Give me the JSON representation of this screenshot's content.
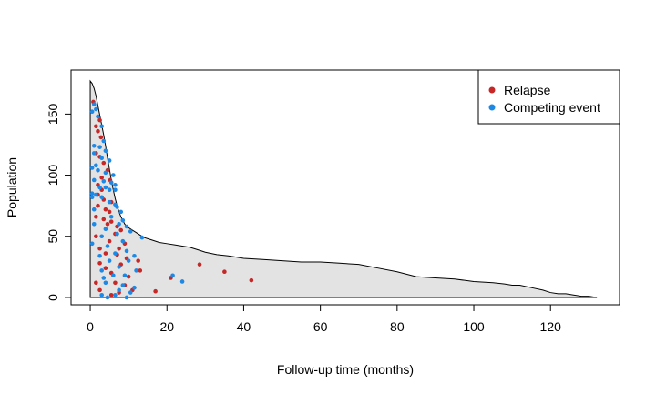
{
  "chart_data": {
    "type": "scatter",
    "title": "",
    "xlabel": "Follow-up time (months)",
    "ylabel": "Population",
    "xlim": [
      -5,
      138
    ],
    "ylim": [
      -6,
      186
    ],
    "xticks": [
      "0",
      "20",
      "40",
      "60",
      "80",
      "100",
      "120"
    ],
    "yticks": [
      "0",
      "50",
      "100",
      "150"
    ],
    "xtick_values": [
      0,
      20,
      40,
      60,
      80,
      100,
      120
    ],
    "ytick_values": [
      0,
      50,
      100,
      150
    ],
    "grid": false,
    "legend_position": "top-right",
    "colors": {
      "relapse": "#c62828",
      "competing": "#1e88e5",
      "area_fill": "#e3e3e3",
      "area_stroke": "#000000"
    },
    "population_curve": {
      "x": [
        0,
        0.5,
        1,
        1.5,
        2,
        2.5,
        3,
        3.5,
        4,
        4.5,
        5,
        5.5,
        6,
        6.5,
        7,
        7.5,
        8,
        8.5,
        9,
        9.5,
        10,
        11,
        12,
        13,
        14,
        16,
        18,
        20,
        22,
        24,
        26,
        28,
        30,
        33,
        36,
        40,
        45,
        50,
        55,
        60,
        65,
        70,
        75,
        80,
        85,
        90,
        95,
        100,
        105,
        108,
        110,
        112,
        115,
        118,
        120,
        122,
        124,
        126,
        128,
        130,
        132
      ],
      "y": [
        177,
        175,
        171,
        165,
        157,
        149,
        141,
        133,
        124,
        114,
        105,
        96,
        88,
        81,
        75,
        70,
        66,
        63,
        60,
        58,
        57,
        55,
        53,
        51,
        49,
        47,
        45,
        44,
        43,
        42,
        41,
        39,
        37,
        35,
        34,
        32,
        31,
        30,
        29,
        29,
        28,
        27,
        24,
        21,
        17,
        16,
        15,
        13,
        12,
        11,
        10,
        10,
        8,
        6,
        4,
        3,
        3,
        2,
        1,
        1,
        0
      ]
    },
    "series": [
      {
        "name": "Relapse",
        "points": [
          [
            0.8,
            160
          ],
          [
            2.5,
            145
          ],
          [
            1.5,
            140
          ],
          [
            2.0,
            136
          ],
          [
            2.8,
            131
          ],
          [
            1.5,
            118
          ],
          [
            2.5,
            115
          ],
          [
            3.5,
            110
          ],
          [
            4.5,
            104
          ],
          [
            3.0,
            98
          ],
          [
            5.2,
            96
          ],
          [
            2.0,
            92
          ],
          [
            3.0,
            88
          ],
          [
            2.0,
            84
          ],
          [
            3.5,
            80
          ],
          [
            5.5,
            78
          ],
          [
            2.0,
            75
          ],
          [
            4.0,
            72
          ],
          [
            5.0,
            70
          ],
          [
            1.5,
            66
          ],
          [
            3.5,
            64
          ],
          [
            5.5,
            62
          ],
          [
            4.5,
            60
          ],
          [
            7.0,
            58
          ],
          [
            8.0,
            55
          ],
          [
            6.5,
            52
          ],
          [
            1.5,
            50
          ],
          [
            5.0,
            46
          ],
          [
            9.0,
            44
          ],
          [
            2.5,
            40
          ],
          [
            7.5,
            40
          ],
          [
            4.0,
            36
          ],
          [
            7.0,
            35
          ],
          [
            9.5,
            32
          ],
          [
            12.5,
            30
          ],
          [
            2.5,
            28
          ],
          [
            8.0,
            27
          ],
          [
            4.0,
            24
          ],
          [
            13.0,
            22
          ],
          [
            5.5,
            20
          ],
          [
            10.0,
            17
          ],
          [
            1.5,
            12
          ],
          [
            6.5,
            12
          ],
          [
            9.0,
            10
          ],
          [
            2.5,
            6
          ],
          [
            11.0,
            6
          ],
          [
            7.5,
            4
          ],
          [
            17.0,
            5
          ],
          [
            28.5,
            27
          ],
          [
            35.0,
            21
          ],
          [
            42.0,
            14
          ],
          [
            21.0,
            16
          ],
          [
            5.5,
            2
          ]
        ]
      },
      {
        "name": "Competing event",
        "points": [
          [
            1.0,
            158
          ],
          [
            1.5,
            154
          ],
          [
            0.5,
            152
          ],
          [
            2.0,
            148
          ],
          [
            3.0,
            140
          ],
          [
            3.5,
            128
          ],
          [
            1.0,
            124
          ],
          [
            2.5,
            123
          ],
          [
            4.0,
            120
          ],
          [
            1.0,
            118
          ],
          [
            3.0,
            114
          ],
          [
            5.0,
            112
          ],
          [
            1.5,
            108
          ],
          [
            0.5,
            106
          ],
          [
            2.0,
            104
          ],
          [
            4.0,
            102
          ],
          [
            6.0,
            100
          ],
          [
            1.0,
            96
          ],
          [
            3.5,
            95
          ],
          [
            5.5,
            94
          ],
          [
            6.5,
            92
          ],
          [
            2.5,
            90
          ],
          [
            4.0,
            90
          ],
          [
            5.0,
            88
          ],
          [
            6.5,
            88
          ],
          [
            0.5,
            85
          ],
          [
            1.5,
            84
          ],
          [
            3.0,
            82
          ],
          [
            0.5,
            82
          ],
          [
            5.0,
            78
          ],
          [
            6.5,
            76
          ],
          [
            7.0,
            74
          ],
          [
            1.0,
            72
          ],
          [
            8.0,
            70
          ],
          [
            5.5,
            66
          ],
          [
            8.5,
            63
          ],
          [
            1.0,
            60
          ],
          [
            7.5,
            60
          ],
          [
            9.5,
            58
          ],
          [
            4.0,
            56
          ],
          [
            10.5,
            54
          ],
          [
            7.0,
            52
          ],
          [
            3.0,
            50
          ],
          [
            13.5,
            49
          ],
          [
            8.5,
            46
          ],
          [
            0.5,
            44
          ],
          [
            4.5,
            42
          ],
          [
            9.5,
            38
          ],
          [
            6.5,
            36
          ],
          [
            2.5,
            34
          ],
          [
            11.5,
            34
          ],
          [
            5.0,
            30
          ],
          [
            10.0,
            30
          ],
          [
            7.5,
            25
          ],
          [
            3.0,
            22
          ],
          [
            12.0,
            22
          ],
          [
            6.0,
            18
          ],
          [
            9.0,
            18
          ],
          [
            3.5,
            16
          ],
          [
            21.5,
            18
          ],
          [
            24.0,
            13
          ],
          [
            4.0,
            12
          ],
          [
            8.5,
            10
          ],
          [
            11.5,
            8
          ],
          [
            7.5,
            6
          ],
          [
            10.5,
            4
          ],
          [
            3.0,
            2
          ],
          [
            6.5,
            2
          ],
          [
            9.5,
            0
          ],
          [
            4.5,
            0
          ]
        ]
      }
    ]
  }
}
